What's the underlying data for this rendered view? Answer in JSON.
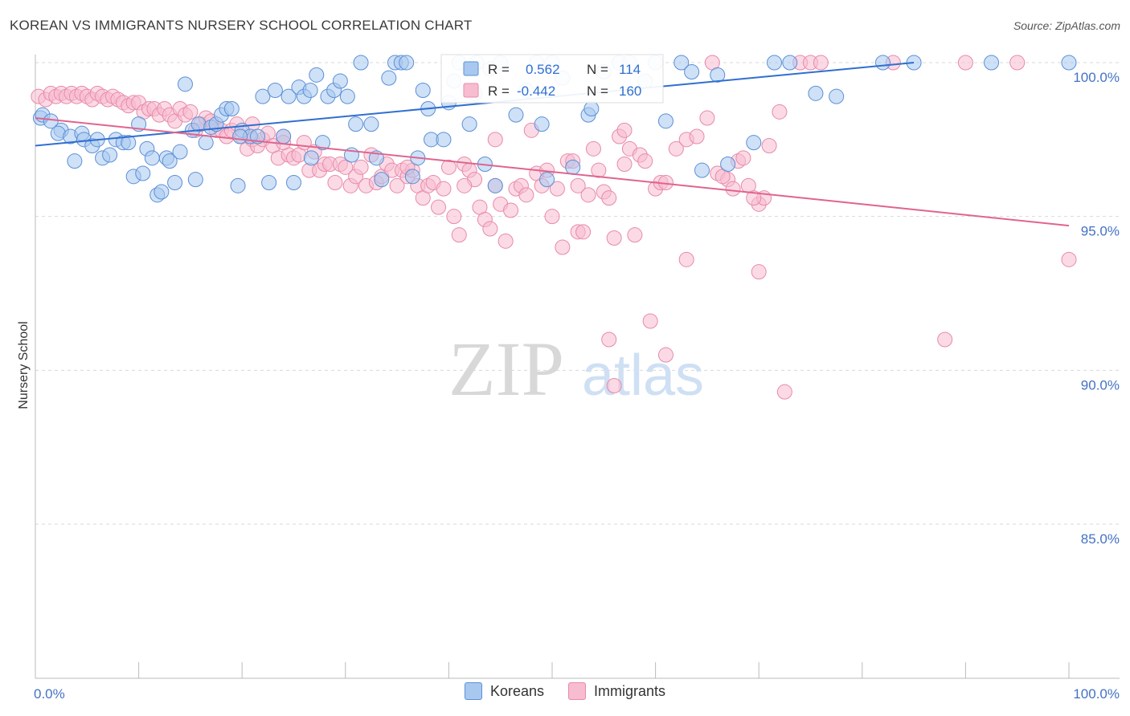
{
  "header": {
    "title": "KOREAN VS IMMIGRANTS NURSERY SCHOOL CORRELATION CHART",
    "source": "Source: ZipAtlas.com"
  },
  "watermark": {
    "zip": "ZIP",
    "atlas": "atlas"
  },
  "stats_legend": {
    "rows": [
      {
        "r_label": "R =",
        "r_value": "0.562",
        "n_label": "N =",
        "n_value": "114"
      },
      {
        "r_label": "R =",
        "r_value": "-0.442",
        "n_label": "N =",
        "n_value": "160"
      }
    ]
  },
  "colors": {
    "koreans_fill": "#a8c8f0",
    "koreans_stroke": "#5b8fd6",
    "koreans_line": "#2f6fd0",
    "immigrants_fill": "#f7bcd0",
    "immigrants_stroke": "#e88aa8",
    "immigrants_line": "#e0648e",
    "axis_text": "#4472c4",
    "grid": "#d9d9d9"
  },
  "chart_data": {
    "type": "scatter",
    "title": "KOREAN VS IMMIGRANTS NURSERY SCHOOL CORRELATION CHART",
    "xlabel": "",
    "ylabel": "Nursery School",
    "xlim": [
      0,
      100
    ],
    "ylim": [
      80,
      100.8
    ],
    "x_tick_labels": [
      "0.0%",
      "100.0%"
    ],
    "y_ticks": [
      85,
      90,
      95,
      100
    ],
    "y_tick_labels": [
      "85.0%",
      "90.0%",
      "95.0%",
      "100.0%"
    ],
    "grid": true,
    "legend_position": "bottom",
    "series": [
      {
        "name": "Koreans",
        "r": 0.562,
        "n": 114,
        "trend": {
          "x": [
            0,
            85
          ],
          "y": [
            97.3,
            100.0
          ]
        },
        "points": [
          [
            0.5,
            98.2
          ],
          [
            0.7,
            98.3
          ],
          [
            1.5,
            98.1
          ],
          [
            2.5,
            97.8
          ],
          [
            2.2,
            97.7
          ],
          [
            3.4,
            97.6
          ],
          [
            3.8,
            96.8
          ],
          [
            4.5,
            97.7
          ],
          [
            4.7,
            97.5
          ],
          [
            5.5,
            97.3
          ],
          [
            6.0,
            97.5
          ],
          [
            6.5,
            96.9
          ],
          [
            7.2,
            97.0
          ],
          [
            7.8,
            97.5
          ],
          [
            8.5,
            97.4
          ],
          [
            9.0,
            97.4
          ],
          [
            9.5,
            96.3
          ],
          [
            10.0,
            98.0
          ],
          [
            10.4,
            96.4
          ],
          [
            10.8,
            97.2
          ],
          [
            11.3,
            96.9
          ],
          [
            11.8,
            95.7
          ],
          [
            12.2,
            95.8
          ],
          [
            12.7,
            96.9
          ],
          [
            13.0,
            96.8
          ],
          [
            13.5,
            96.1
          ],
          [
            14.0,
            97.1
          ],
          [
            14.5,
            99.3
          ],
          [
            15.2,
            97.8
          ],
          [
            15.8,
            98.0
          ],
          [
            16.5,
            97.4
          ],
          [
            17.0,
            97.9
          ],
          [
            17.5,
            98.0
          ],
          [
            18.0,
            98.3
          ],
          [
            18.5,
            98.5
          ],
          [
            19.0,
            98.5
          ],
          [
            19.6,
            96.0
          ],
          [
            20.0,
            97.8
          ],
          [
            20.8,
            97.6
          ],
          [
            21.5,
            97.6
          ],
          [
            22.0,
            98.9
          ],
          [
            22.6,
            96.1
          ],
          [
            23.2,
            99.1
          ],
          [
            24.0,
            97.6
          ],
          [
            24.5,
            98.9
          ],
          [
            25.0,
            96.1
          ],
          [
            25.5,
            99.2
          ],
          [
            26.0,
            98.9
          ],
          [
            26.6,
            99.1
          ],
          [
            27.2,
            99.6
          ],
          [
            27.8,
            97.4
          ],
          [
            28.3,
            98.9
          ],
          [
            28.9,
            99.1
          ],
          [
            29.5,
            99.4
          ],
          [
            30.2,
            98.9
          ],
          [
            31.0,
            98.0
          ],
          [
            31.5,
            100.0
          ],
          [
            32.5,
            98.0
          ],
          [
            33.0,
            96.9
          ],
          [
            33.5,
            96.2
          ],
          [
            34.2,
            99.5
          ],
          [
            34.8,
            100.0
          ],
          [
            35.4,
            100.0
          ],
          [
            35.9,
            100.0
          ],
          [
            36.5,
            96.3
          ],
          [
            37.5,
            99.1
          ],
          [
            38.0,
            98.5
          ],
          [
            38.3,
            97.5
          ],
          [
            39.5,
            97.5
          ],
          [
            40.0,
            98.7
          ],
          [
            40.5,
            99.4
          ],
          [
            41.0,
            100.0
          ],
          [
            42.0,
            98.0
          ],
          [
            42.5,
            99.0
          ],
          [
            42.7,
            100.0
          ],
          [
            43.5,
            96.7
          ],
          [
            44.0,
            99.8
          ],
          [
            45.0,
            100.0
          ],
          [
            46.5,
            98.3
          ],
          [
            47.5,
            99.1
          ],
          [
            48.5,
            100.0
          ],
          [
            49.0,
            98.0
          ],
          [
            50.0,
            100.0
          ],
          [
            51.0,
            99.5
          ],
          [
            52.0,
            96.6
          ],
          [
            53.5,
            98.3
          ],
          [
            53.8,
            98.5
          ],
          [
            55.0,
            99.7
          ],
          [
            56.5,
            100.0
          ],
          [
            57.5,
            100.0
          ],
          [
            59.0,
            99.4
          ],
          [
            60.0,
            100.0
          ],
          [
            61.0,
            98.1
          ],
          [
            62.5,
            100.0
          ],
          [
            63.5,
            99.7
          ],
          [
            66.0,
            99.6
          ],
          [
            67.0,
            96.7
          ],
          [
            69.5,
            97.4
          ],
          [
            71.5,
            100.0
          ],
          [
            73.0,
            100.0
          ],
          [
            75.5,
            99.0
          ],
          [
            77.5,
            98.9
          ],
          [
            82.0,
            100.0
          ],
          [
            85.0,
            100.0
          ],
          [
            92.5,
            100.0
          ],
          [
            100.0,
            100.0
          ],
          [
            15.5,
            96.2
          ],
          [
            19.8,
            97.6
          ],
          [
            26.7,
            96.9
          ],
          [
            30.6,
            97.0
          ],
          [
            37.0,
            96.9
          ],
          [
            44.5,
            96.0
          ],
          [
            49.5,
            96.2
          ],
          [
            64.5,
            96.5
          ]
        ]
      },
      {
        "name": "Immigrants",
        "r": -0.442,
        "n": 160,
        "trend": {
          "x": [
            0,
            100
          ],
          "y": [
            98.2,
            94.7
          ]
        },
        "points": [
          [
            0.3,
            98.9
          ],
          [
            1.0,
            98.8
          ],
          [
            1.5,
            99.0
          ],
          [
            2.0,
            98.9
          ],
          [
            2.5,
            99.0
          ],
          [
            3.0,
            98.9
          ],
          [
            3.5,
            99.0
          ],
          [
            4.0,
            98.9
          ],
          [
            4.5,
            99.0
          ],
          [
            5.0,
            98.9
          ],
          [
            5.5,
            98.8
          ],
          [
            6.0,
            99.0
          ],
          [
            6.5,
            98.9
          ],
          [
            7.0,
            98.8
          ],
          [
            7.5,
            98.9
          ],
          [
            8.0,
            98.8
          ],
          [
            8.5,
            98.7
          ],
          [
            9.0,
            98.6
          ],
          [
            9.5,
            98.7
          ],
          [
            10.0,
            98.7
          ],
          [
            10.5,
            98.4
          ],
          [
            11.0,
            98.5
          ],
          [
            11.5,
            98.5
          ],
          [
            12.0,
            98.3
          ],
          [
            12.5,
            98.5
          ],
          [
            13.0,
            98.3
          ],
          [
            13.5,
            98.1
          ],
          [
            14.0,
            98.5
          ],
          [
            14.5,
            98.3
          ],
          [
            15.0,
            98.4
          ],
          [
            15.5,
            97.8
          ],
          [
            16.0,
            98.0
          ],
          [
            16.5,
            98.2
          ],
          [
            17.0,
            98.1
          ],
          [
            17.5,
            97.8
          ],
          [
            18.0,
            97.8
          ],
          [
            18.5,
            97.6
          ],
          [
            19.0,
            97.8
          ],
          [
            19.5,
            98.0
          ],
          [
            20.0,
            97.6
          ],
          [
            20.5,
            97.2
          ],
          [
            21.0,
            97.5
          ],
          [
            21.5,
            97.3
          ],
          [
            22.0,
            97.5
          ],
          [
            22.5,
            97.7
          ],
          [
            23.0,
            97.3
          ],
          [
            23.5,
            96.9
          ],
          [
            24.0,
            97.6
          ],
          [
            24.5,
            97.0
          ],
          [
            25.0,
            96.9
          ],
          [
            25.5,
            97.0
          ],
          [
            26.0,
            97.4
          ],
          [
            26.5,
            96.5
          ],
          [
            27.0,
            97.1
          ],
          [
            27.5,
            96.5
          ],
          [
            28.0,
            96.7
          ],
          [
            28.5,
            96.7
          ],
          [
            29.0,
            96.1
          ],
          [
            29.5,
            96.7
          ],
          [
            30.0,
            96.6
          ],
          [
            30.5,
            96.0
          ],
          [
            31.0,
            96.3
          ],
          [
            31.5,
            96.6
          ],
          [
            32.0,
            96.0
          ],
          [
            32.5,
            97.0
          ],
          [
            33.0,
            96.1
          ],
          [
            33.5,
            96.3
          ],
          [
            34.0,
            96.7
          ],
          [
            34.5,
            96.5
          ],
          [
            35.0,
            96.0
          ],
          [
            35.5,
            96.5
          ],
          [
            36.0,
            96.3
          ],
          [
            36.5,
            96.5
          ],
          [
            37.0,
            96.0
          ],
          [
            37.5,
            95.6
          ],
          [
            38.0,
            96.0
          ],
          [
            38.5,
            96.1
          ],
          [
            39.0,
            95.3
          ],
          [
            39.5,
            95.9
          ],
          [
            40.0,
            96.6
          ],
          [
            40.5,
            95.0
          ],
          [
            41.0,
            94.4
          ],
          [
            41.5,
            96.7
          ],
          [
            42.0,
            96.5
          ],
          [
            42.5,
            96.2
          ],
          [
            43.0,
            95.3
          ],
          [
            43.5,
            94.9
          ],
          [
            44.0,
            94.6
          ],
          [
            44.5,
            96.0
          ],
          [
            45.0,
            95.4
          ],
          [
            45.5,
            94.2
          ],
          [
            46.0,
            95.2
          ],
          [
            46.5,
            95.9
          ],
          [
            47.0,
            96.0
          ],
          [
            47.5,
            95.7
          ],
          [
            48.0,
            97.8
          ],
          [
            48.5,
            96.4
          ],
          [
            49.0,
            96.0
          ],
          [
            49.5,
            96.5
          ],
          [
            50.0,
            95.0
          ],
          [
            50.5,
            95.9
          ],
          [
            51.0,
            94.0
          ],
          [
            51.5,
            96.8
          ],
          [
            52.0,
            96.8
          ],
          [
            52.5,
            94.5
          ],
          [
            53.0,
            94.5
          ],
          [
            53.5,
            95.7
          ],
          [
            54.0,
            97.2
          ],
          [
            54.5,
            96.5
          ],
          [
            55.0,
            95.8
          ],
          [
            55.5,
            95.6
          ],
          [
            56.0,
            94.3
          ],
          [
            56.5,
            97.6
          ],
          [
            57.0,
            97.8
          ],
          [
            57.5,
            97.2
          ],
          [
            58.0,
            94.4
          ],
          [
            58.5,
            97.0
          ],
          [
            59.0,
            96.8
          ],
          [
            60.0,
            95.9
          ],
          [
            60.5,
            96.1
          ],
          [
            61.0,
            96.1
          ],
          [
            62.0,
            97.2
          ],
          [
            63.0,
            97.5
          ],
          [
            64.0,
            97.6
          ],
          [
            65.0,
            98.2
          ],
          [
            66.0,
            96.4
          ],
          [
            67.0,
            96.2
          ],
          [
            68.0,
            96.8
          ],
          [
            69.0,
            96.0
          ],
          [
            70.0,
            95.4
          ],
          [
            70.5,
            95.6
          ],
          [
            71.0,
            97.3
          ],
          [
            72.0,
            98.4
          ],
          [
            44.5,
            97.5
          ],
          [
            55.5,
            91.0
          ],
          [
            59.5,
            91.6
          ],
          [
            61.0,
            90.5
          ],
          [
            63.0,
            93.6
          ],
          [
            70.0,
            93.2
          ],
          [
            72.5,
            89.3
          ],
          [
            74.0,
            100.0
          ],
          [
            75.0,
            100.0
          ],
          [
            76.0,
            100.0
          ],
          [
            83.0,
            100.0
          ],
          [
            90.0,
            100.0
          ],
          [
            95.0,
            100.0
          ],
          [
            100.0,
            93.6
          ],
          [
            88.0,
            91.0
          ],
          [
            56.0,
            89.5
          ],
          [
            65.5,
            100.0
          ],
          [
            66.5,
            96.3
          ],
          [
            67.5,
            95.9
          ],
          [
            68.5,
            96.9
          ],
          [
            69.5,
            95.6
          ],
          [
            36.0,
            96.6
          ],
          [
            41.5,
            96.0
          ],
          [
            52.5,
            96.0
          ],
          [
            57.0,
            96.7
          ],
          [
            21.0,
            98.0
          ],
          [
            24.0,
            97.4
          ]
        ]
      }
    ]
  },
  "bottom_legend": {
    "items": [
      {
        "label": "Koreans"
      },
      {
        "label": "Immigrants"
      }
    ]
  }
}
